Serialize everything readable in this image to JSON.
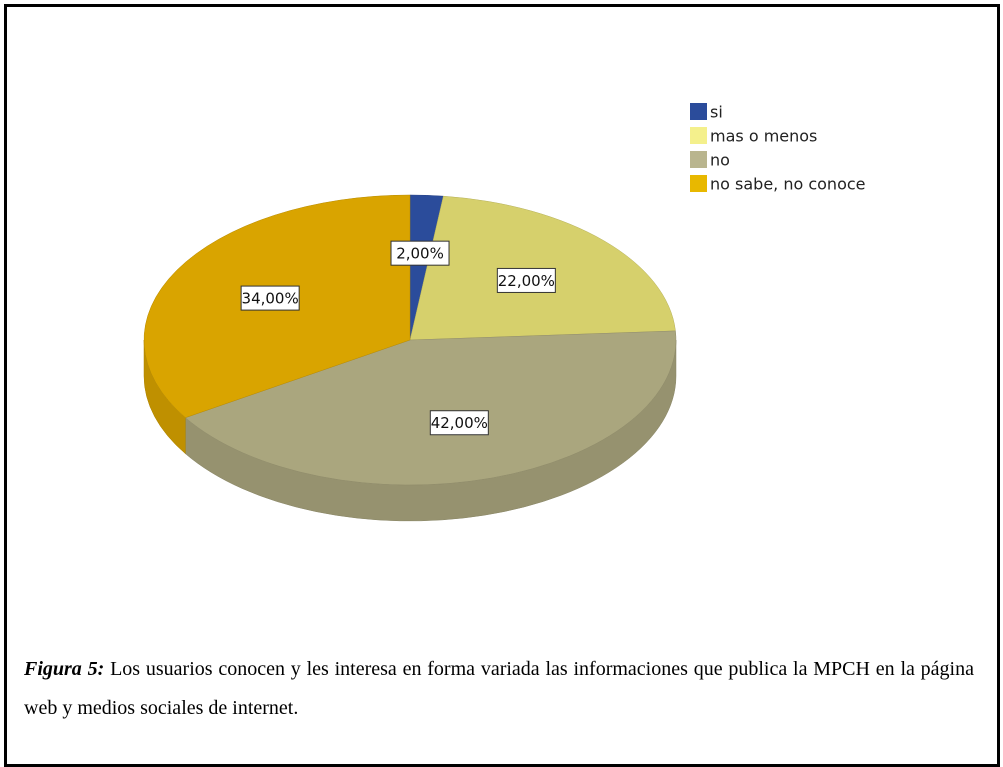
{
  "chart_data": {
    "type": "pie",
    "categories": [
      "si",
      "mas o menos",
      "no",
      "no sabe, no conoce"
    ],
    "values": [
      2,
      22,
      42,
      34
    ],
    "value_labels": [
      "2,00%",
      "22,00%",
      "42,00%",
      "34,00%"
    ],
    "colors": [
      "#2b4c9b",
      "#d6d06c",
      "#aaa67e",
      "#d9a400"
    ],
    "legend_colors": [
      "#2b4c9b",
      "#f4f08c",
      "#b9b58e",
      "#e8b800"
    ],
    "legend": "top-right"
  },
  "caption": {
    "label": "Figura 5:",
    "text": "Los usuarios conocen y les interesa en forma variada las informaciones que publica la MPCH en la página web y medios sociales de internet."
  }
}
